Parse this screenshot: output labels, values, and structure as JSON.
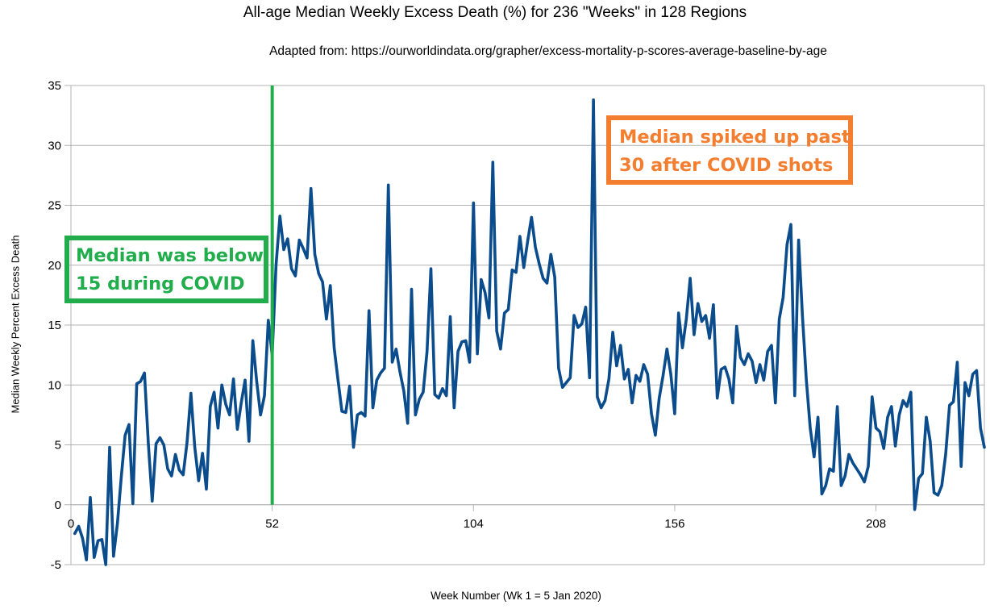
{
  "title": "All-age Median Weekly Excess Death (%) for 236 \"Weeks\" in 128 Regions",
  "subtitle": "Adapted from: https://ourworldindata.org/grapher/excess-mortality-p-scores-average-baseline-by-age",
  "colors": {
    "line": "#0b4c8c",
    "marker": "#21ad4b",
    "callout_green": "#21ad4b",
    "callout_orange": "#f47e30",
    "grid": "#b3b3b3"
  },
  "annotations": {
    "green": {
      "line1": "Median was below",
      "line2": "15 during COVID"
    },
    "orange": {
      "line1": "Median spiked up past",
      "line2": "30 after COVID shots"
    }
  },
  "chart_data": {
    "type": "line",
    "title": "All-age Median Weekly Excess Death (%) for 236 \"Weeks\" in 128 Regions",
    "xlabel": "Week Number (Wk 1 = 5 Jan 2020)",
    "ylabel": "Median Weekly Percent Excess Death",
    "xlim": [
      0,
      236
    ],
    "ylim": [
      -5,
      35
    ],
    "x_ticks": [
      0,
      52,
      104,
      156,
      208
    ],
    "y_ticks": [
      -5,
      0,
      5,
      10,
      15,
      20,
      25,
      30,
      35
    ],
    "grid": true,
    "vertical_marker": {
      "x": 52
    },
    "series": [
      {
        "values": [
          -2.4,
          -1.8,
          -2.8,
          -4.6,
          0.6,
          -4.4,
          -3.0,
          -2.9,
          -5.0,
          4.8,
          -4.3,
          -1.6,
          2.3,
          5.8,
          6.7,
          0.1,
          10.1,
          10.3,
          11.0,
          5.1,
          0.3,
          5.1,
          5.6,
          5.0,
          3.0,
          2.4,
          4.2,
          2.9,
          2.5,
          5.2,
          9.3,
          4.8,
          2.0,
          4.3,
          1.3,
          8.2,
          9.4,
          6.4,
          10.0,
          8.4,
          7.5,
          10.5,
          6.3,
          8.5,
          10.4,
          5.3,
          13.7,
          10.3,
          7.5,
          9.1,
          15.4,
          12.5,
          20.0,
          24.1,
          21.3,
          22.2,
          19.7,
          19.1,
          22.1,
          21.4,
          20.6,
          26.4,
          20.9,
          19.3,
          18.6,
          15.5,
          18.3,
          13.1,
          10.4,
          7.8,
          7.7,
          9.9,
          4.8,
          7.5,
          7.7,
          7.4,
          16.2,
          8.1,
          10.4,
          11.0,
          11.4,
          26.7,
          11.9,
          13.0,
          11.1,
          9.5,
          6.8,
          18.0,
          7.5,
          8.8,
          9.4,
          12.8,
          19.7,
          9.2,
          8.9,
          9.7,
          9.1,
          15.7,
          8.1,
          12.8,
          13.6,
          13.7,
          11.9,
          25.2,
          12.6,
          18.8,
          17.7,
          15.6,
          28.6,
          14.5,
          13.0,
          16.0,
          16.3,
          19.6,
          19.4,
          22.4,
          19.8,
          22.0,
          24.0,
          21.5,
          20.1,
          18.9,
          18.5,
          20.9,
          19.0,
          11.4,
          9.8,
          10.2,
          10.6,
          15.8,
          14.8,
          15.1,
          16.5,
          10.6,
          33.8,
          9.0,
          8.1,
          8.7,
          10.5,
          14.4,
          11.6,
          13.3,
          10.5,
          11.3,
          8.5,
          10.8,
          10.3,
          11.7,
          10.9,
          7.6,
          5.8,
          8.9,
          10.8,
          13.0,
          10.9,
          7.6,
          16.0,
          13.1,
          15.5,
          18.9,
          14.2,
          16.8,
          15.3,
          15.8,
          13.9,
          16.7,
          8.9,
          11.3,
          11.5,
          10.5,
          8.5,
          14.9,
          12.3,
          11.7,
          12.6,
          12.0,
          10.2,
          11.7,
          10.4,
          12.8,
          13.3,
          8.5,
          15.5,
          17.3,
          21.7,
          23.4,
          9.1,
          22.1,
          15.7,
          10.4,
          6.4,
          4.0,
          7.3,
          0.9,
          1.6,
          3.0,
          2.8,
          8.2,
          1.6,
          2.4,
          4.2,
          3.5,
          3.0,
          2.5,
          1.9,
          3.2,
          9.0,
          6.4,
          6.1,
          4.7,
          7.3,
          8.2,
          4.9,
          7.5,
          8.7,
          8.2,
          9.4,
          -0.4,
          2.2,
          2.6,
          7.3,
          5.3,
          1.0,
          0.8,
          1.6,
          4.2,
          8.3,
          8.6,
          11.9,
          3.2,
          10.2,
          9.1,
          10.9,
          11.2,
          6.4,
          4.8
        ]
      }
    ]
  }
}
